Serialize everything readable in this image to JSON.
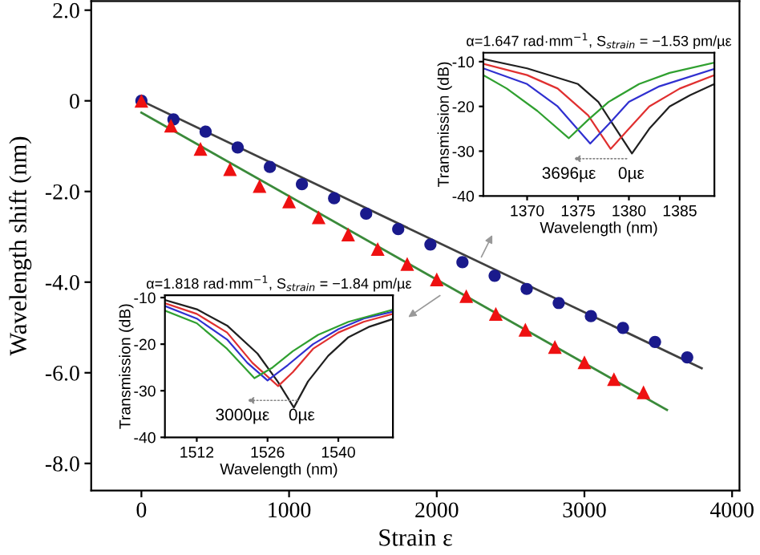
{
  "chart_data": [
    {
      "type": "scatter",
      "xlabel": "Strain ε",
      "ylabel": "Wavelength shift (nm)",
      "xlim": [
        -340,
        4050
      ],
      "ylim": [
        -8.6,
        2.2
      ],
      "xticks": [
        0,
        1000,
        2000,
        3000,
        4000
      ],
      "yticks": [
        {
          "value": 2,
          "label": "2.0"
        },
        0,
        {
          "value": -2,
          "label": "-2.0"
        },
        {
          "value": -4,
          "label": "-4.0"
        },
        {
          "value": -6,
          "label": "-6.0"
        },
        {
          "value": -8,
          "label": "-8.0"
        }
      ],
      "grid": false,
      "series": [
        {
          "type": "line",
          "color": "#404040",
          "x": [
            0,
            3794
          ],
          "values": [
            0,
            -5.9
          ],
          "marker": "none"
        },
        {
          "type": "line",
          "color": "#3a8a3a",
          "x": [
            0,
            3559
          ],
          "values": [
            -0.26,
            -6.82
          ],
          "marker": "none"
        },
        {
          "type": "scatter",
          "color": "#1a1a8c",
          "marker": "circle",
          "x": [
            0,
            217,
            435,
            652,
            870,
            1087,
            1305,
            1522,
            1739,
            1957,
            2174,
            2392,
            2609,
            2826,
            3044,
            3261,
            3478,
            3696
          ],
          "values": [
            0,
            -0.41,
            -0.68,
            -1.03,
            -1.46,
            -1.84,
            -2.15,
            -2.49,
            -2.83,
            -3.17,
            -3.56,
            -3.86,
            -4.15,
            -4.46,
            -4.75,
            -5.01,
            -5.32,
            -5.66
          ]
        },
        {
          "type": "scatter",
          "color": "#ee1111",
          "marker": "triangle",
          "x": [
            0,
            200,
            400,
            600,
            800,
            1000,
            1200,
            1400,
            1600,
            1800,
            2000,
            2200,
            2400,
            2600,
            2800,
            3000,
            3200,
            3400
          ],
          "values": [
            0,
            -0.55,
            -1.06,
            -1.51,
            -1.88,
            -2.22,
            -2.57,
            -2.95,
            -3.27,
            -3.6,
            -3.94,
            -4.31,
            -4.7,
            -5.05,
            -5.43,
            -5.77,
            -6.14,
            -6.43
          ]
        }
      ]
    },
    {
      "type": "line",
      "title": "α=1.647 rad·mm$^{−1}$, S$_{strain}$ = −1.53 pm/µε",
      "xlabel": "Wavelength (nm)",
      "ylabel": "Transmission (dB)",
      "xlim": [
        1365.7,
        1388.4
      ],
      "ylim": [
        -40,
        -8
      ],
      "xticks": [
        1370,
        1375,
        1380,
        1385
      ],
      "yticks": [
        -10,
        -20,
        -30,
        -40
      ],
      "grid": false,
      "annotations": [
        "3696µε",
        "0µε"
      ],
      "series": [
        {
          "color": "#202020",
          "x": [
            1365.7,
            1370,
            1375,
            1377,
            1379,
            1380.3,
            1382,
            1384,
            1386,
            1388.4
          ],
          "values": [
            -9.4,
            -11.5,
            -15,
            -19,
            -26,
            -30.5,
            -25,
            -20,
            -17.5,
            -15
          ]
        },
        {
          "color": "#e03030",
          "x": [
            1365.7,
            1370,
            1373,
            1376,
            1378.2,
            1380,
            1382,
            1385,
            1388.4
          ],
          "values": [
            -10.5,
            -13,
            -16,
            -22,
            -29.5,
            -25,
            -20,
            -16,
            -13
          ]
        },
        {
          "color": "#3030d0",
          "x": [
            1365.7,
            1370,
            1373,
            1376.2,
            1378,
            1380,
            1383,
            1388.4
          ],
          "values": [
            -11.5,
            -15,
            -20,
            -28.3,
            -24,
            -19,
            -15.5,
            -11.6
          ]
        },
        {
          "color": "#30a030",
          "x": [
            1365.7,
            1368,
            1371,
            1374.1,
            1376,
            1378,
            1381,
            1384,
            1388.4
          ],
          "values": [
            -13,
            -16,
            -21,
            -27.1,
            -23,
            -19,
            -15,
            -12.5,
            -10.2
          ]
        }
      ]
    },
    {
      "type": "line",
      "title": "α=1.818 rad·mm$^{−1}$, S$_{strain}$ = −1.84 pm/µε",
      "xlabel": "Wavelength (nm)",
      "ylabel": "Transmission (dB)",
      "xlim": [
        1505.7,
        1550.8
      ],
      "ylim": [
        -40,
        -9.5
      ],
      "xticks": [
        1512,
        1526,
        1540
      ],
      "yticks": [
        -10,
        -20,
        -30,
        -40
      ],
      "grid": false,
      "annotations": [
        "3000µε",
        "0µε"
      ],
      "series": [
        {
          "color": "#202020",
          "x": [
            1505.7,
            1512,
            1518,
            1524,
            1528,
            1531.2,
            1534,
            1538,
            1542,
            1546,
            1550.8
          ],
          "values": [
            -10.5,
            -12.5,
            -16,
            -22,
            -28,
            -33.6,
            -28,
            -22.5,
            -18.5,
            -16.3,
            -14.6
          ]
        },
        {
          "color": "#e03030",
          "x": [
            1505.7,
            1512,
            1518,
            1523,
            1528.1,
            1531,
            1535,
            1540,
            1545,
            1550.8
          ],
          "values": [
            -11.2,
            -13.5,
            -17.5,
            -24,
            -29,
            -26,
            -21,
            -17.5,
            -15.2,
            -13.5
          ]
        },
        {
          "color": "#3030d0",
          "x": [
            1505.7,
            1512,
            1518,
            1522,
            1526,
            1530,
            1535,
            1540,
            1545,
            1550.8
          ],
          "values": [
            -11.8,
            -14.5,
            -19,
            -24,
            -27.8,
            -24.5,
            -20,
            -16.8,
            -14.5,
            -13
          ]
        },
        {
          "color": "#30a030",
          "x": [
            1505.7,
            1512,
            1518,
            1523.4,
            1527,
            1531,
            1536,
            1542,
            1550.8
          ],
          "values": [
            -12.8,
            -15.5,
            -21,
            -27.3,
            -25,
            -21.5,
            -18,
            -15.2,
            -12.6
          ]
        }
      ]
    }
  ]
}
